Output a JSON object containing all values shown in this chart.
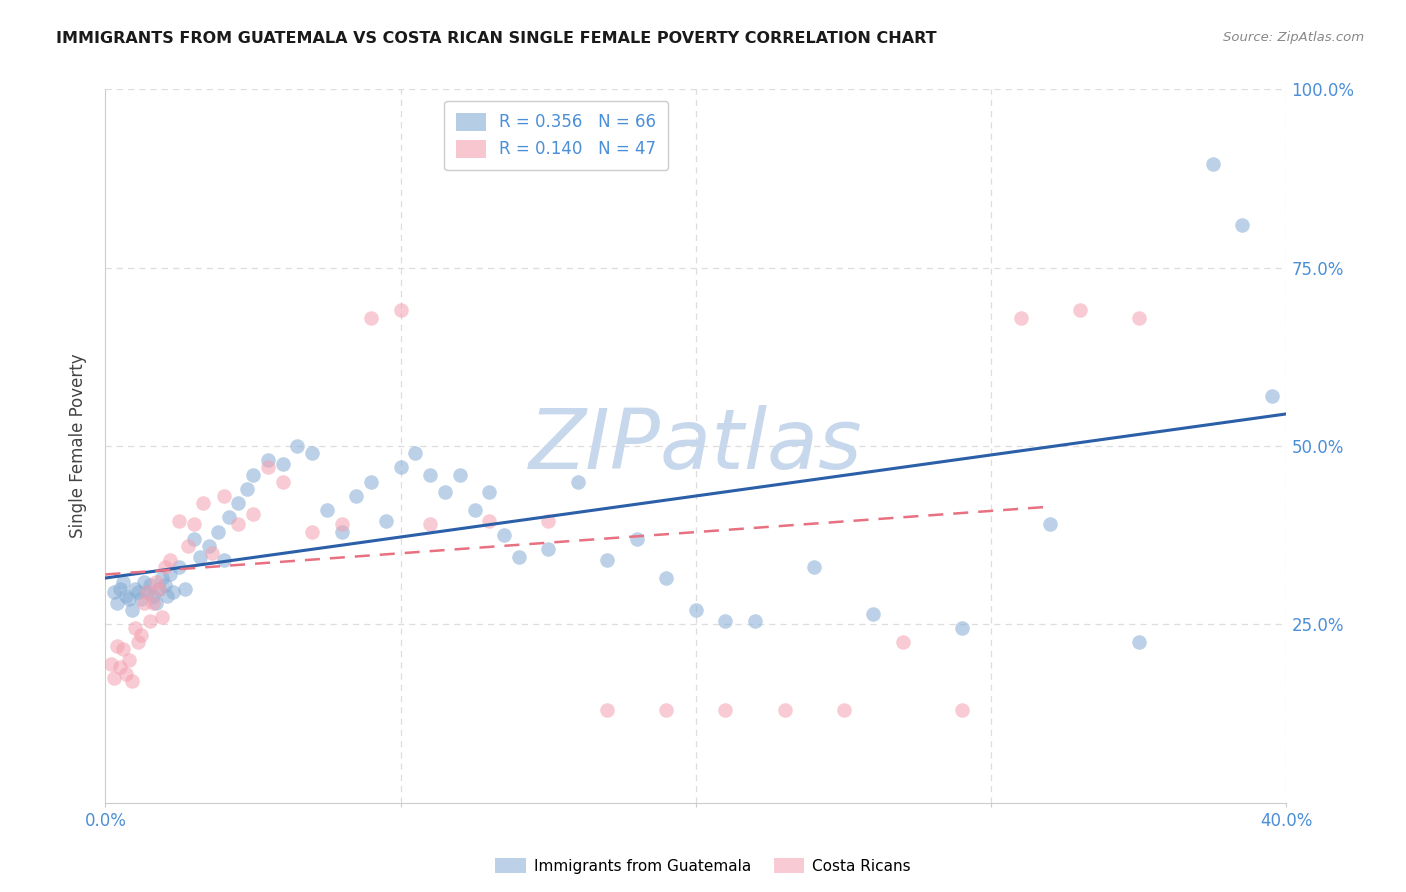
{
  "title": "IMMIGRANTS FROM GUATEMALA VS COSTA RICAN SINGLE FEMALE POVERTY CORRELATION CHART",
  "source": "Source: ZipAtlas.com",
  "ylabel": "Single Female Poverty",
  "xlim": [
    0.0,
    0.4
  ],
  "ylim": [
    0.0,
    1.0
  ],
  "blue_color": "#85ACD4",
  "pink_color": "#F4A0B0",
  "blue_line_color": "#2B5FA8",
  "pink_line_color": "#E87080",
  "right_axis_color": "#4B8FD8",
  "tick_label_color": "#4B8FD8",
  "legend_R1": "R = 0.356",
  "legend_N1": "N = 66",
  "legend_R2": "R = 0.140",
  "legend_N2": "N = 47",
  "blue_trend_x0": 0.0,
  "blue_trend_y0": 0.315,
  "blue_trend_x1": 0.4,
  "blue_trend_y1": 0.545,
  "pink_trend_x0": 0.0,
  "pink_trend_y0": 0.32,
  "pink_trend_x1": 0.32,
  "pink_trend_y1": 0.415,
  "blue_points_x": [
    0.003,
    0.004,
    0.005,
    0.006,
    0.007,
    0.008,
    0.009,
    0.01,
    0.011,
    0.012,
    0.013,
    0.014,
    0.015,
    0.016,
    0.017,
    0.018,
    0.019,
    0.02,
    0.021,
    0.022,
    0.023,
    0.025,
    0.027,
    0.03,
    0.032,
    0.035,
    0.038,
    0.04,
    0.042,
    0.045,
    0.048,
    0.05,
    0.055,
    0.06,
    0.065,
    0.07,
    0.075,
    0.08,
    0.085,
    0.09,
    0.095,
    0.1,
    0.105,
    0.11,
    0.115,
    0.12,
    0.125,
    0.13,
    0.135,
    0.14,
    0.15,
    0.16,
    0.17,
    0.18,
    0.19,
    0.2,
    0.21,
    0.22,
    0.24,
    0.26,
    0.29,
    0.32,
    0.35,
    0.375,
    0.385,
    0.395
  ],
  "blue_points_y": [
    0.295,
    0.28,
    0.3,
    0.31,
    0.29,
    0.285,
    0.27,
    0.3,
    0.295,
    0.285,
    0.31,
    0.295,
    0.305,
    0.29,
    0.28,
    0.3,
    0.315,
    0.305,
    0.29,
    0.32,
    0.295,
    0.33,
    0.3,
    0.37,
    0.345,
    0.36,
    0.38,
    0.34,
    0.4,
    0.42,
    0.44,
    0.46,
    0.48,
    0.475,
    0.5,
    0.49,
    0.41,
    0.38,
    0.43,
    0.45,
    0.395,
    0.47,
    0.49,
    0.46,
    0.435,
    0.46,
    0.41,
    0.435,
    0.375,
    0.345,
    0.355,
    0.45,
    0.34,
    0.37,
    0.315,
    0.27,
    0.255,
    0.255,
    0.33,
    0.265,
    0.245,
    0.39,
    0.225,
    0.895,
    0.81,
    0.57
  ],
  "pink_points_x": [
    0.002,
    0.003,
    0.004,
    0.005,
    0.006,
    0.007,
    0.008,
    0.009,
    0.01,
    0.011,
    0.012,
    0.013,
    0.014,
    0.015,
    0.016,
    0.017,
    0.018,
    0.019,
    0.02,
    0.022,
    0.025,
    0.028,
    0.03,
    0.033,
    0.036,
    0.04,
    0.045,
    0.05,
    0.055,
    0.06,
    0.07,
    0.08,
    0.09,
    0.1,
    0.11,
    0.13,
    0.15,
    0.17,
    0.19,
    0.21,
    0.23,
    0.25,
    0.27,
    0.29,
    0.31,
    0.33,
    0.35
  ],
  "pink_points_y": [
    0.195,
    0.175,
    0.22,
    0.19,
    0.215,
    0.18,
    0.2,
    0.17,
    0.245,
    0.225,
    0.235,
    0.28,
    0.295,
    0.255,
    0.28,
    0.31,
    0.3,
    0.26,
    0.33,
    0.34,
    0.395,
    0.36,
    0.39,
    0.42,
    0.35,
    0.43,
    0.39,
    0.405,
    0.47,
    0.45,
    0.38,
    0.39,
    0.68,
    0.69,
    0.39,
    0.395,
    0.395,
    0.13,
    0.13,
    0.13,
    0.13,
    0.13,
    0.225,
    0.13,
    0.68,
    0.69,
    0.68
  ],
  "watermark_text": "ZIPatlas",
  "watermark_color": "#C8D8EC",
  "background_color": "#FFFFFF",
  "grid_color": "#DDDDDD",
  "spine_color": "#CCCCCC"
}
